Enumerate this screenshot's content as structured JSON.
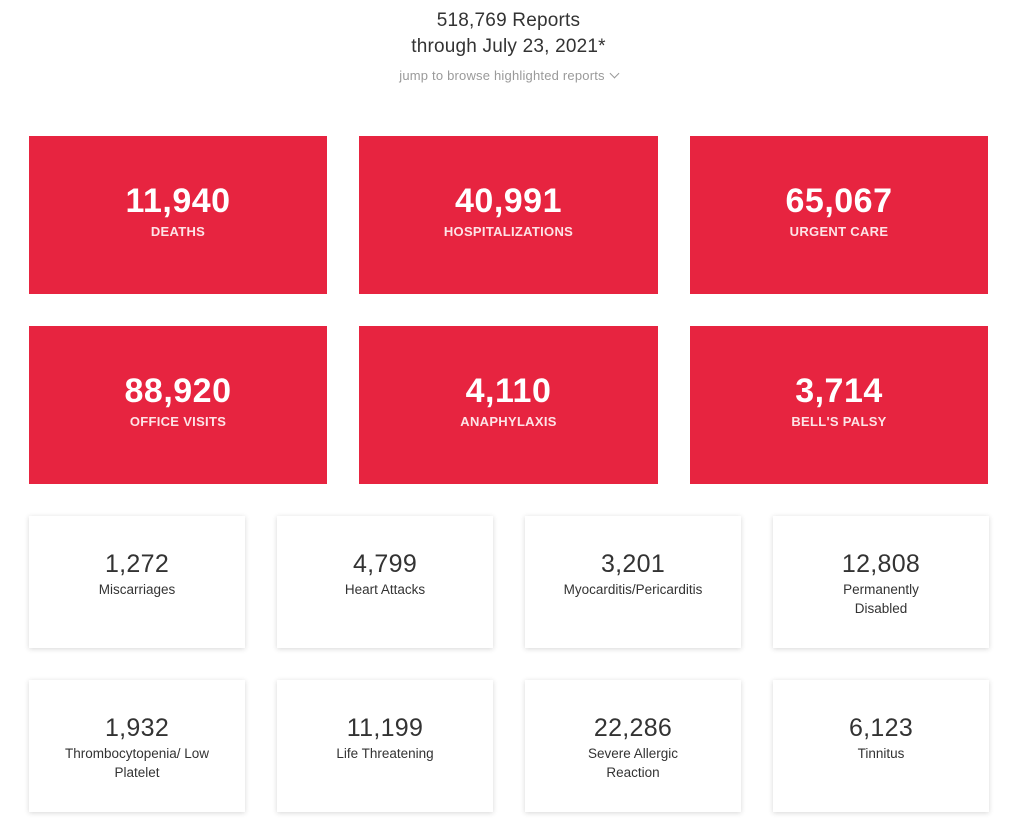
{
  "header": {
    "reports_line": "518,769 Reports",
    "date_line": "through July 23, 2021*",
    "jump_link": "jump to browse highlighted reports",
    "jump_icon": "chevron-down-icon"
  },
  "colors": {
    "accent_red": "#e72440",
    "text": "#333333",
    "muted": "#9a9a9a"
  },
  "red_cards": [
    {
      "value": "11,940",
      "label": "DEATHS"
    },
    {
      "value": "40,991",
      "label": "HOSPITALIZATIONS"
    },
    {
      "value": "65,067",
      "label": "URGENT CARE"
    },
    {
      "value": "88,920",
      "label": "OFFICE VISITS"
    },
    {
      "value": "4,110",
      "label": "ANAPHYLAXIS"
    },
    {
      "value": "3,714",
      "label": "BELL'S PALSY"
    }
  ],
  "white_cards": [
    {
      "value": "1,272",
      "label": "Miscarriages"
    },
    {
      "value": "4,799",
      "label": "Heart Attacks"
    },
    {
      "value": "3,201",
      "label": "Myocarditis/Pericarditis"
    },
    {
      "value": "12,808",
      "label": "Permanently Disabled"
    },
    {
      "value": "1,932",
      "label": "Thrombocytopenia/ Low Platelet"
    },
    {
      "value": "11,199",
      "label": "Life Threatening"
    },
    {
      "value": "22,286",
      "label": "Severe Allergic Reaction"
    },
    {
      "value": "6,123",
      "label": "Tinnitus"
    }
  ]
}
